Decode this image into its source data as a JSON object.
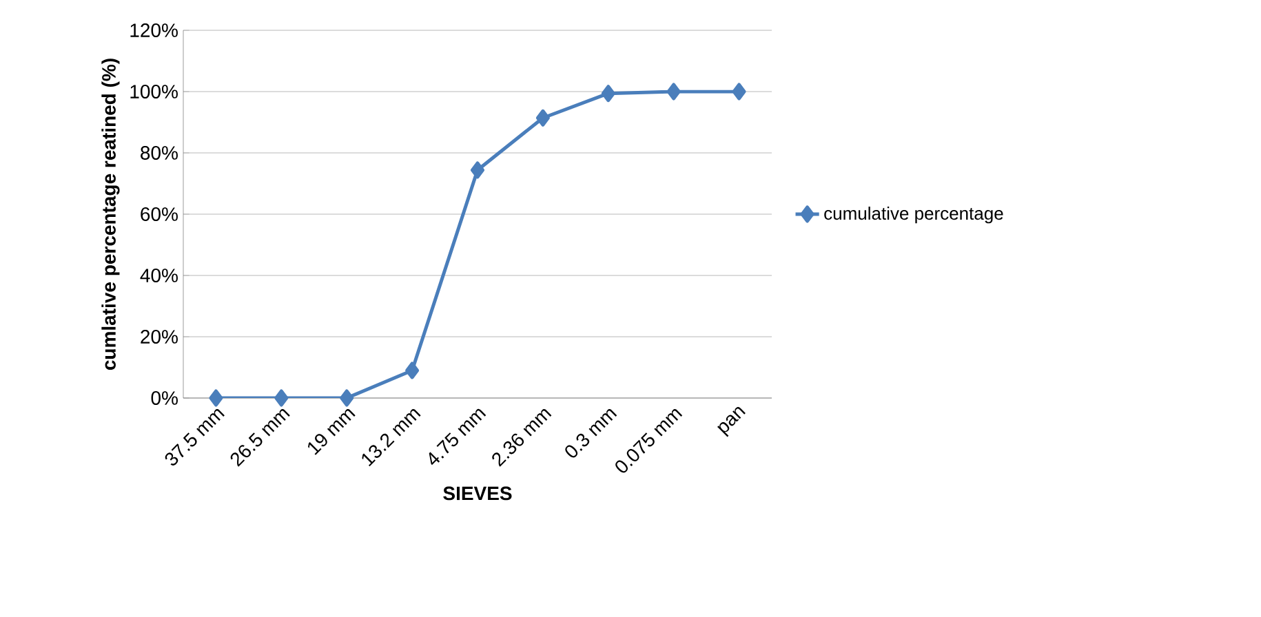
{
  "chart_data": {
    "type": "line",
    "xlabel": "SIEVES",
    "ylabel": "cumlative percentage reatined (%)",
    "categories": [
      "37.5 mm",
      "26.5 mm",
      "19 mm",
      "13.2 mm",
      "4.75 mm",
      "2.36 mm",
      "0.3 mm",
      "0.075 mm",
      "pan"
    ],
    "series": [
      {
        "name": "cumulative percentage",
        "color": "#4a7ebb",
        "values": [
          0,
          0,
          0,
          9,
          74.4,
          91.4,
          99.4,
          100,
          100
        ]
      }
    ],
    "ylim": [
      0,
      120
    ],
    "yticks": [
      {
        "value": 0,
        "label": "0%"
      },
      {
        "value": 20,
        "label": "20%"
      },
      {
        "value": 40,
        "label": "40%"
      },
      {
        "value": 60,
        "label": "60%"
      },
      {
        "value": 80,
        "label": "80%"
      },
      {
        "value": 100,
        "label": "100%"
      },
      {
        "value": 120,
        "label": "120%"
      }
    ],
    "grid": "y",
    "legend": "right",
    "marker": "diamond",
    "line_style": "solid"
  }
}
